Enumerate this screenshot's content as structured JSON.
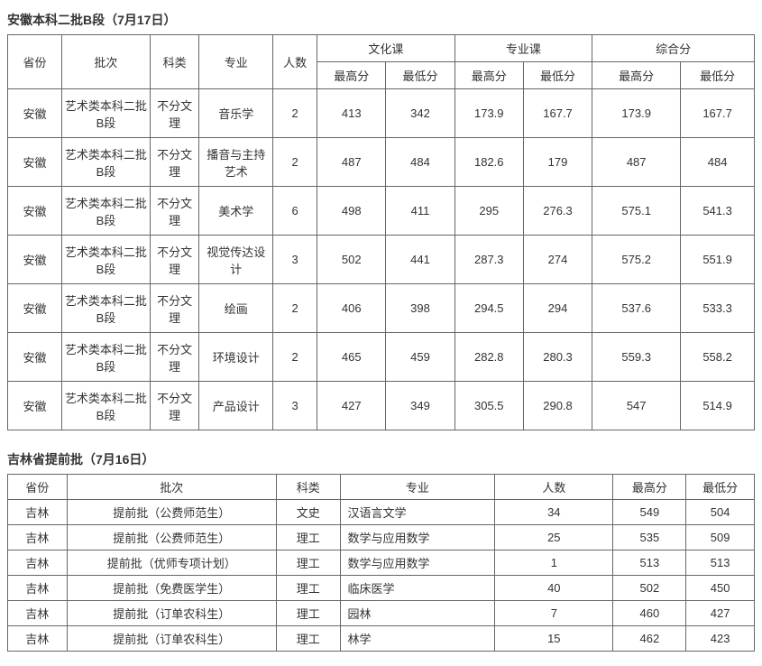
{
  "section1": {
    "title": "安徽本科二批B段（7月17日）",
    "headers": {
      "province": "省份",
      "batch": "批次",
      "category": "科类",
      "major": "专业",
      "count": "人数",
      "culture_group": "文化课",
      "professional_group": "专业课",
      "composite_group": "综合分",
      "max": "最高分",
      "min": "最低分"
    },
    "col_widths": {
      "province": 55,
      "batch": 90,
      "category": 50,
      "major": 75,
      "count": 45,
      "score": 70,
      "composite_max": 90,
      "composite_min": 75
    },
    "rows": [
      {
        "province": "安徽",
        "batch": "艺术类本科二批B段",
        "category": "不分文理",
        "major": "音乐学",
        "count": "2",
        "c_max": "413",
        "c_min": "342",
        "p_max": "173.9",
        "p_min": "167.7",
        "z_max": "173.9",
        "z_min": "167.7"
      },
      {
        "province": "安徽",
        "batch": "艺术类本科二批B段",
        "category": "不分文理",
        "major": "播音与主持艺术",
        "count": "2",
        "c_max": "487",
        "c_min": "484",
        "p_max": "182.6",
        "p_min": "179",
        "z_max": "487",
        "z_min": "484"
      },
      {
        "province": "安徽",
        "batch": "艺术类本科二批B段",
        "category": "不分文理",
        "major": "美术学",
        "count": "6",
        "c_max": "498",
        "c_min": "411",
        "p_max": "295",
        "p_min": "276.3",
        "z_max": "575.1",
        "z_min": "541.3"
      },
      {
        "province": "安徽",
        "batch": "艺术类本科二批B段",
        "category": "不分文理",
        "major": "视觉传达设计",
        "count": "3",
        "c_max": "502",
        "c_min": "441",
        "p_max": "287.3",
        "p_min": "274",
        "z_max": "575.2",
        "z_min": "551.9"
      },
      {
        "province": "安徽",
        "batch": "艺术类本科二批B段",
        "category": "不分文理",
        "major": "绘画",
        "count": "2",
        "c_max": "406",
        "c_min": "398",
        "p_max": "294.5",
        "p_min": "294",
        "z_max": "537.6",
        "z_min": "533.3"
      },
      {
        "province": "安徽",
        "batch": "艺术类本科二批B段",
        "category": "不分文理",
        "major": "环境设计",
        "count": "2",
        "c_max": "465",
        "c_min": "459",
        "p_max": "282.8",
        "p_min": "280.3",
        "z_max": "559.3",
        "z_min": "558.2"
      },
      {
        "province": "安徽",
        "batch": "艺术类本科二批B段",
        "category": "不分文理",
        "major": "产品设计",
        "count": "3",
        "c_max": "427",
        "c_min": "349",
        "p_max": "305.5",
        "p_min": "290.8",
        "z_max": "547",
        "z_min": "514.9"
      }
    ]
  },
  "section2": {
    "title": "吉林省提前批（7月16日）",
    "headers": {
      "province": "省份",
      "batch": "批次",
      "category": "科类",
      "major": "专业",
      "count": "人数",
      "max": "最高分",
      "min": "最低分"
    },
    "col_widths": {
      "province": 65,
      "batch": 230,
      "category": 70,
      "major": 170,
      "count": 130,
      "max": 80,
      "min": 75
    },
    "rows": [
      {
        "province": "吉林",
        "batch": "提前批（公费师范生）",
        "category": "文史",
        "major": "汉语言文学",
        "count": "34",
        "max": "549",
        "min": "504"
      },
      {
        "province": "吉林",
        "batch": "提前批（公费师范生）",
        "category": "理工",
        "major": "数学与应用数学",
        "count": "25",
        "max": "535",
        "min": "509"
      },
      {
        "province": "吉林",
        "batch": "提前批（优师专项计划）",
        "category": "理工",
        "major": "数学与应用数学",
        "count": "1",
        "max": "513",
        "min": "513"
      },
      {
        "province": "吉林",
        "batch": "提前批（免费医学生）",
        "category": "理工",
        "major": "临床医学",
        "count": "40",
        "max": "502",
        "min": "450"
      },
      {
        "province": "吉林",
        "batch": "提前批（订单农科生）",
        "category": "理工",
        "major": "园林",
        "count": "7",
        "max": "460",
        "min": "427"
      },
      {
        "province": "吉林",
        "batch": "提前批（订单农科生）",
        "category": "理工",
        "major": "林学",
        "count": "15",
        "max": "462",
        "min": "423"
      }
    ]
  }
}
